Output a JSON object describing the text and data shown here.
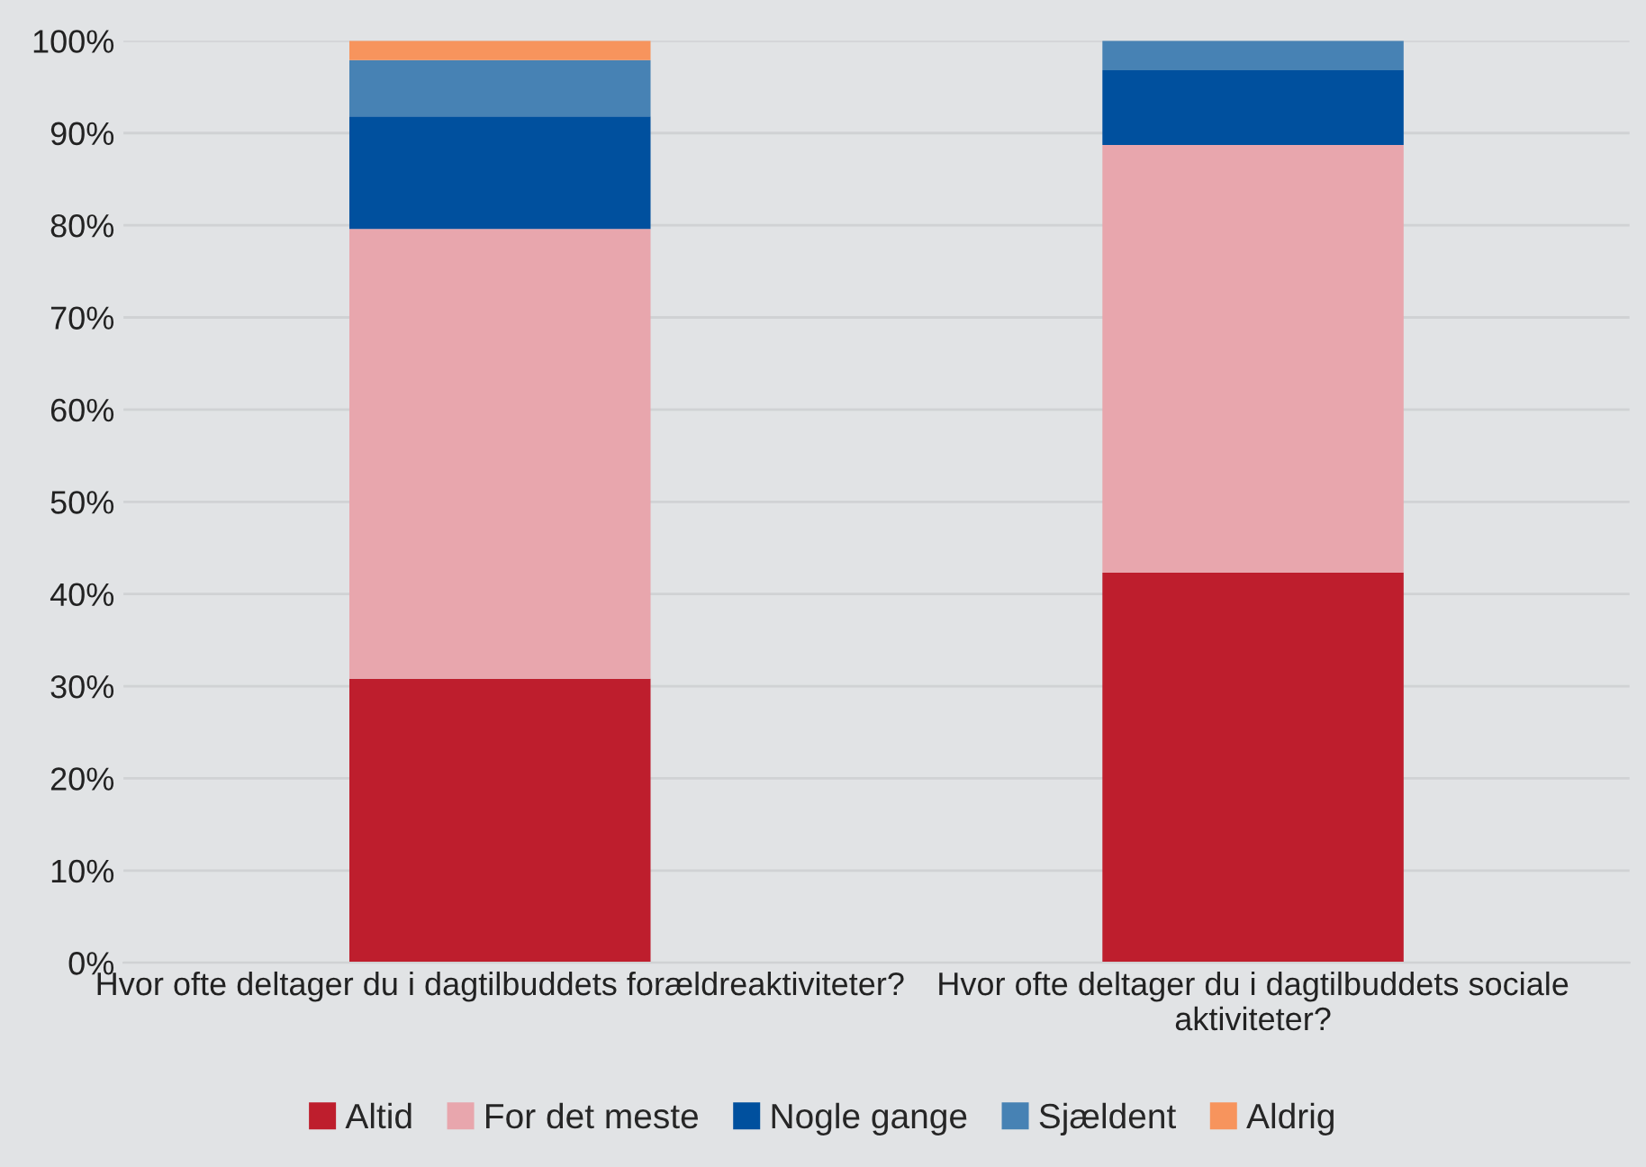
{
  "chart_data": {
    "type": "bar",
    "stacked": true,
    "categories": [
      "Hvor ofte deltager du i dagtilbuddets forældreaktiviteter?",
      "Hvor ofte deltager du i dagtilbuddets sociale aktiviteter?"
    ],
    "series": [
      {
        "name": "Altid",
        "color": "#be1e2d",
        "values": [
          30.8,
          42.3
        ]
      },
      {
        "name": "For det meste",
        "color": "#e8a6ad",
        "values": [
          48.8,
          46.4
        ]
      },
      {
        "name": "Nogle gange",
        "color": "#00509e",
        "values": [
          12.2,
          8.1
        ]
      },
      {
        "name": "Sjældent",
        "color": "#4782b4",
        "values": [
          6.1,
          3.2
        ]
      },
      {
        "name": "Aldrig",
        "color": "#f7945d",
        "values": [
          2.1,
          0
        ]
      }
    ],
    "ylim": [
      0,
      100
    ],
    "yticks": [
      {
        "value": 0,
        "label": "0%"
      },
      {
        "value": 10,
        "label": "10%"
      },
      {
        "value": 20,
        "label": "20%"
      },
      {
        "value": 30,
        "label": "30%"
      },
      {
        "value": 40,
        "label": "40%"
      },
      {
        "value": 50,
        "label": "50%"
      },
      {
        "value": 60,
        "label": "60%"
      },
      {
        "value": 70,
        "label": "70%"
      },
      {
        "value": 80,
        "label": "80%"
      },
      {
        "value": 90,
        "label": "90%"
      },
      {
        "value": 100,
        "label": "100%"
      }
    ],
    "grid": "y",
    "legend": "bottom"
  }
}
